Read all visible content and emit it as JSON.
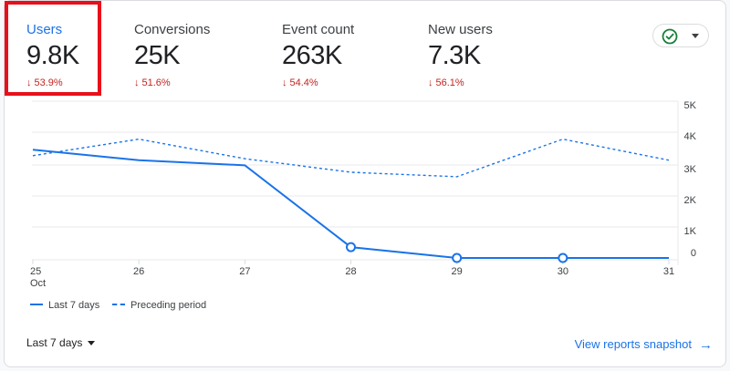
{
  "metrics": [
    {
      "label": "Users",
      "value": "9.8K",
      "change": "53.9%",
      "active": true
    },
    {
      "label": "Conversions",
      "value": "25K",
      "change": "51.6%",
      "active": false
    },
    {
      "label": "Event count",
      "value": "263K",
      "change": "54.4%",
      "active": false
    },
    {
      "label": "New users",
      "value": "7.3K",
      "change": "56.1%",
      "active": false
    }
  ],
  "change_arrow": "↓",
  "status_icon": "check-circle-icon",
  "colors": {
    "accent": "#1a73e8",
    "negative": "#c5221f",
    "highlight": "#e8101b",
    "status_check": "#188038"
  },
  "chart_data": {
    "type": "line",
    "categories": [
      "25",
      "26",
      "27",
      "28",
      "29",
      "30",
      "31"
    ],
    "x_sublabel": "Oct",
    "y_ticks": [
      "5K",
      "4K",
      "3K",
      "2K",
      "1K",
      "0"
    ],
    "ylim": [
      0,
      5000
    ],
    "series": [
      {
        "name": "Last 7 days",
        "style": "solid",
        "values": [
          3600,
          3250,
          3080,
          360,
          0,
          0,
          0
        ],
        "markers": [
          false,
          false,
          false,
          true,
          true,
          true,
          false
        ]
      },
      {
        "name": "Preceding period",
        "style": "dashed",
        "values": [
          3400,
          3950,
          3300,
          2850,
          2700,
          3950,
          3250
        ]
      }
    ],
    "legend": [
      "Last 7 days",
      "Preceding period"
    ],
    "legend_position": "bottom-left"
  },
  "footer": {
    "date_range": "Last 7 days",
    "snapshot_link": "View reports snapshot",
    "snapshot_arrow": "→"
  }
}
